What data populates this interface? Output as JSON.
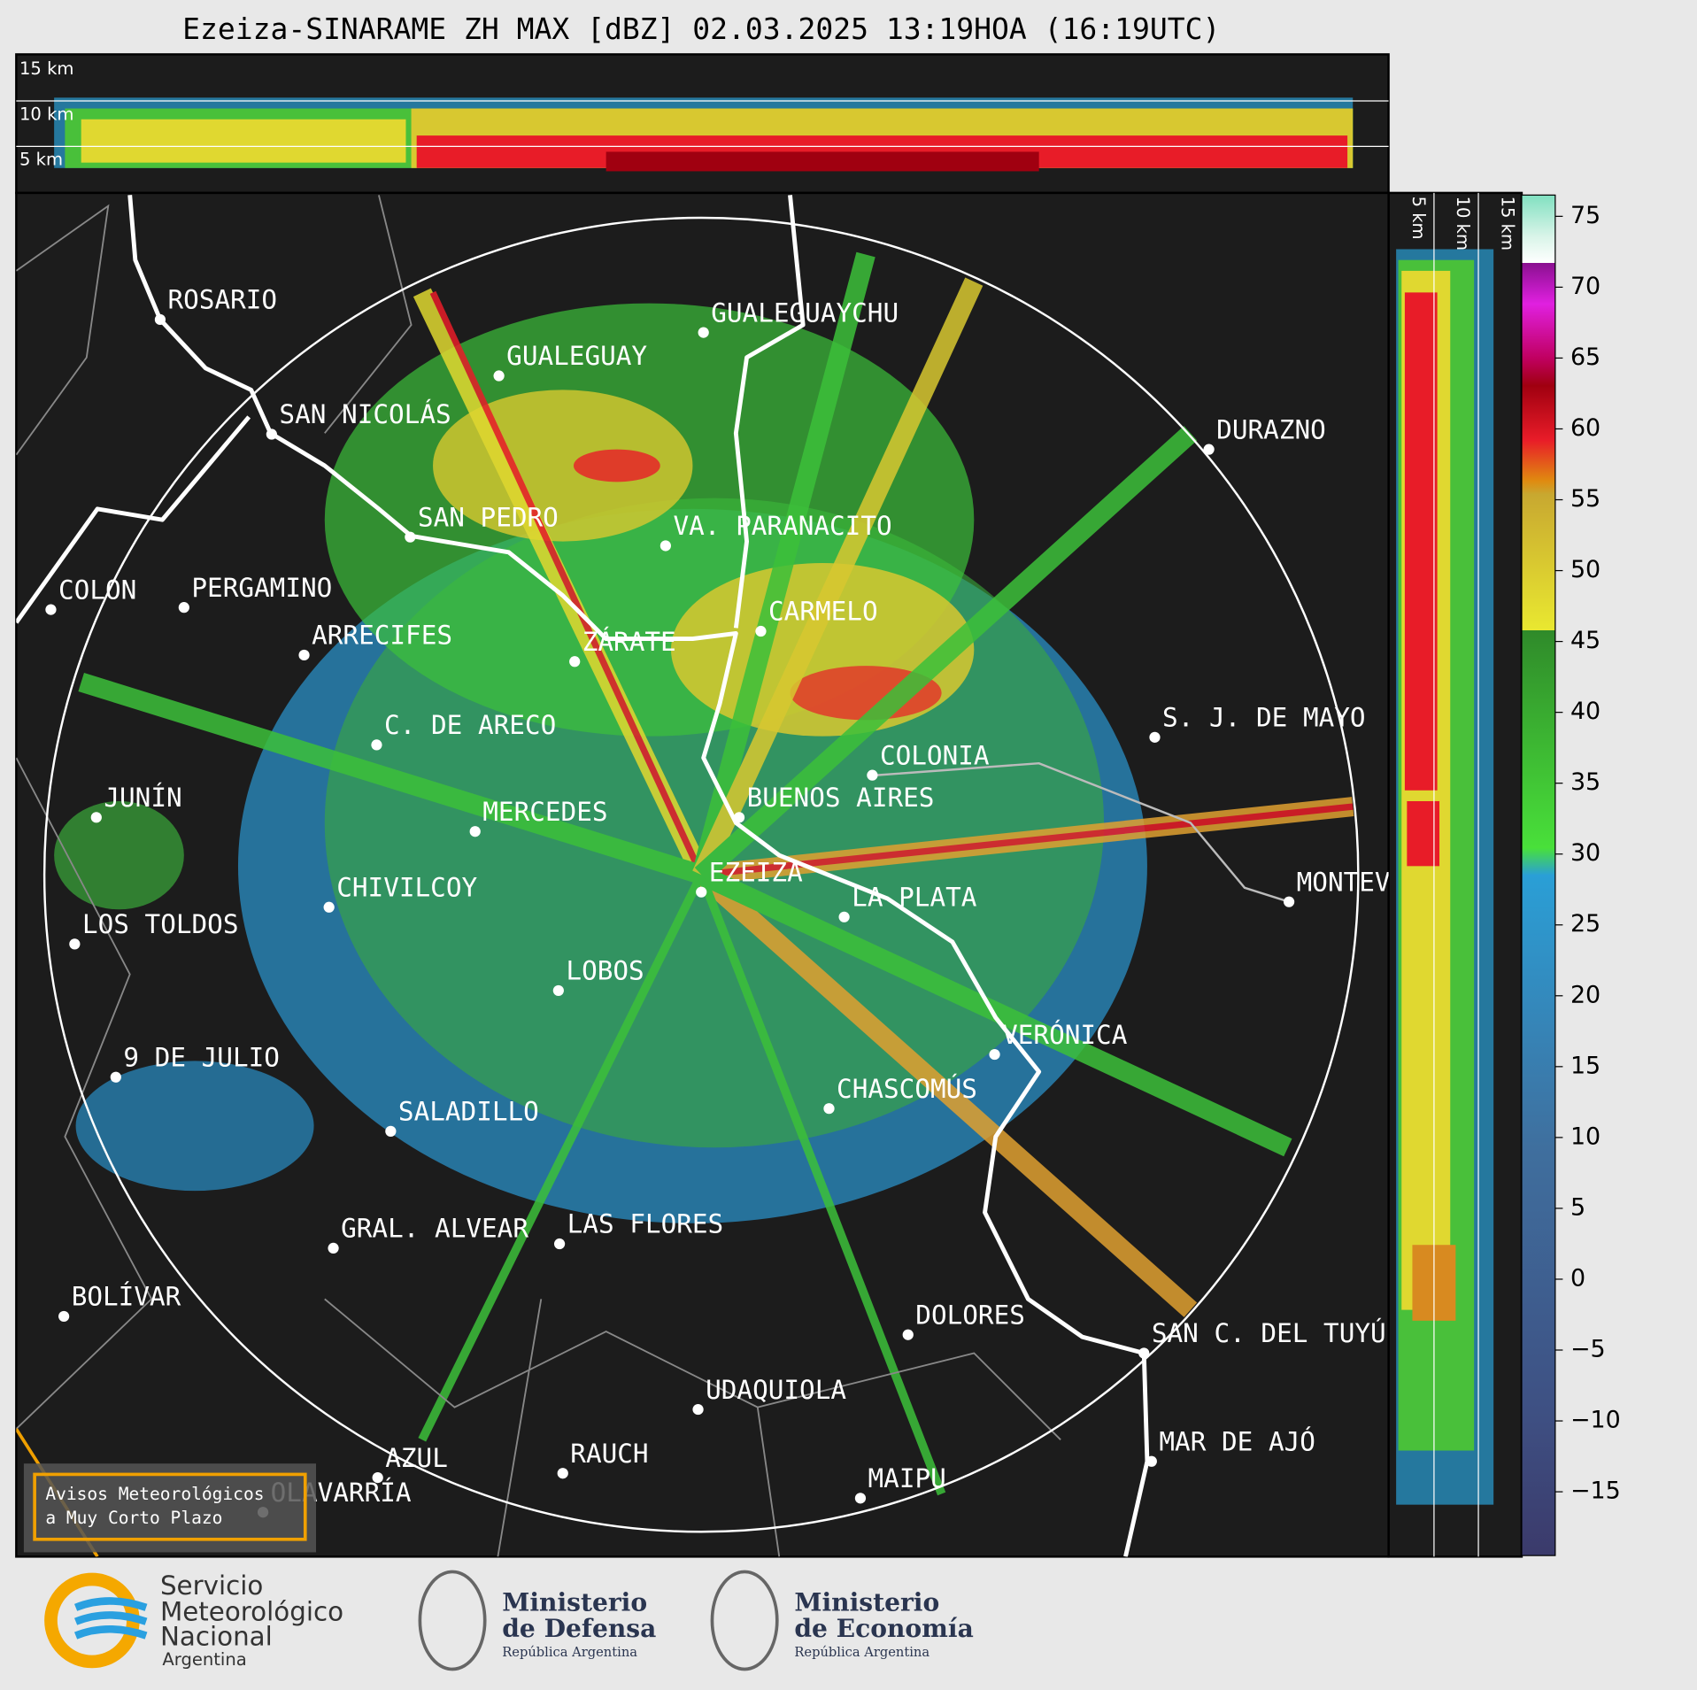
{
  "title": "Ezeiza-SINARAME ZH MAX [dBZ] 02.03.2025 13:19HOA (16:19UTC)",
  "top_strip": {
    "labels": [
      "15 km",
      "10 km",
      "5 km"
    ]
  },
  "side_strip": {
    "labels": [
      "5 km",
      "10 km",
      "15 km"
    ]
  },
  "cities": [
    "ROSARIO",
    "GUALEGUAYCHU",
    "GUALEGUAY",
    "SAN NICOLÁS",
    "DURAZNO",
    "SAN PEDRO",
    "VA. PARANACITO",
    "COLON",
    "PERGAMINO",
    "CARMELO",
    "ARRECIFES",
    "ZÁRATE",
    "S. J. DE MAYO",
    "C. DE ARECO",
    "COLONIA",
    "BUENOS AIRES",
    "JUNÍN",
    "MERCEDES",
    "EZEIZA",
    "MONTEVIDEO",
    "CHIVILCOY",
    "LA PLATA",
    "LOS TOLDOS",
    "LOBOS",
    "VERÓNICA",
    "9 DE JULIO",
    "CHASCOMÚS",
    "SALADILLO",
    "LAS FLORES",
    "GRAL. ALVEAR",
    "BOLÍVAR",
    "DOLORES",
    "SAN C. DEL TUYÚ",
    "UDAQUIOLA",
    "MAR DE AJÓ",
    "RAUCH",
    "AZUL",
    "OLAVARRÍA",
    "MAIPU"
  ],
  "colorbar": {
    "range": [
      -19.5,
      76.5
    ],
    "ticks": [
      {
        "value": -15,
        "label": "−15"
      },
      {
        "value": -10,
        "label": "−10"
      },
      {
        "value": -5,
        "label": "−5"
      },
      0,
      5,
      10,
      15,
      20,
      25,
      30,
      35,
      40,
      45,
      50,
      55,
      60,
      65,
      70,
      75
    ]
  },
  "notice": [
    "Avisos Meteorológicos",
    "a Muy Corto Plazo"
  ],
  "logos": {
    "smn": [
      "Servicio",
      "Meteorológico",
      "Nacional",
      "Argentina"
    ],
    "defensa": [
      "Ministerio",
      "de Defensa",
      "República Argentina"
    ],
    "economia": [
      "Ministerio",
      "de Economía",
      "República Argentina"
    ]
  }
}
